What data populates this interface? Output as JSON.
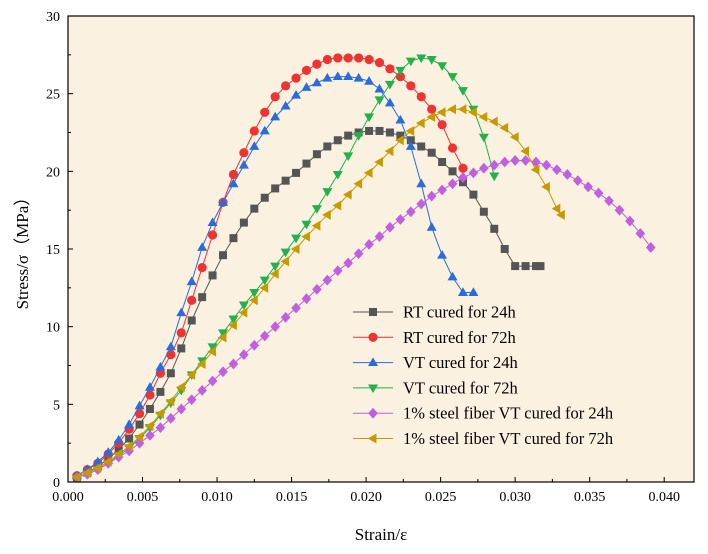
{
  "chart_data": {
    "type": "line",
    "title": "",
    "xlabel": "Strain/ε",
    "ylabel": "Stress/σ（MPa）",
    "xlim": [
      0,
      0.042
    ],
    "ylim": [
      0,
      30
    ],
    "xticks": [
      "0.000",
      "0.005",
      "0.010",
      "0.015",
      "0.020",
      "0.025",
      "0.030",
      "0.035",
      "0.040"
    ],
    "yticks": [
      "0",
      "5",
      "10",
      "15",
      "20",
      "25",
      "30"
    ],
    "grid": false,
    "legend_position": "bottom-right",
    "series": [
      {
        "name": "RT cured for 24h",
        "color": "#555555",
        "marker": "square",
        "x": [
          0.0006,
          0.0013,
          0.002,
          0.0027,
          0.0034,
          0.0041,
          0.0048,
          0.0055,
          0.0062,
          0.0069,
          0.0076,
          0.0083,
          0.009,
          0.0097,
          0.0104,
          0.0111,
          0.0118,
          0.0125,
          0.0132,
          0.0139,
          0.0146,
          0.0153,
          0.016,
          0.0167,
          0.0174,
          0.0181,
          0.0188,
          0.0195,
          0.0202,
          0.0209,
          0.0216,
          0.0223,
          0.023,
          0.0237,
          0.0244,
          0.0251,
          0.0258,
          0.0265,
          0.0272,
          0.0279,
          0.0286,
          0.0293,
          0.03,
          0.0307,
          0.0314,
          0.0317
        ],
        "y": [
          0.3,
          0.6,
          1.0,
          1.5,
          2.1,
          2.8,
          3.7,
          4.7,
          5.8,
          7.0,
          8.6,
          10.4,
          11.9,
          13.3,
          14.6,
          15.7,
          16.7,
          17.6,
          18.3,
          18.9,
          19.4,
          19.9,
          20.5,
          21.1,
          21.6,
          22.0,
          22.3,
          22.5,
          22.6,
          22.6,
          22.5,
          22.3,
          22.0,
          21.6,
          21.2,
          20.6,
          20.0,
          19.3,
          18.5,
          17.4,
          16.3,
          15.0,
          13.9,
          13.9,
          13.9,
          13.9
        ]
      },
      {
        "name": "RT cured for 72h",
        "color": "#ee3333",
        "marker": "circle",
        "x": [
          0.0006,
          0.0013,
          0.002,
          0.0027,
          0.0034,
          0.0041,
          0.0048,
          0.0055,
          0.0062,
          0.0069,
          0.0076,
          0.0083,
          0.009,
          0.0097,
          0.0104,
          0.0111,
          0.0118,
          0.0125,
          0.0132,
          0.0139,
          0.0146,
          0.0153,
          0.016,
          0.0167,
          0.0174,
          0.0181,
          0.0188,
          0.0195,
          0.0202,
          0.0209,
          0.0216,
          0.0223,
          0.023,
          0.0237,
          0.0244,
          0.0251,
          0.0258,
          0.0265
        ],
        "y": [
          0.4,
          0.8,
          1.2,
          1.8,
          2.5,
          3.4,
          4.4,
          5.6,
          7.0,
          8.2,
          9.6,
          11.7,
          13.8,
          15.9,
          18.0,
          19.8,
          21.2,
          22.6,
          23.8,
          24.8,
          25.5,
          26.0,
          26.5,
          26.9,
          27.2,
          27.3,
          27.3,
          27.3,
          27.2,
          27.0,
          26.6,
          26.1,
          25.5,
          24.8,
          24.0,
          23.0,
          21.5,
          20.2
        ]
      },
      {
        "name": "VT cured for 24h",
        "color": "#2a6cdc",
        "marker": "triangle-up",
        "x": [
          0.0006,
          0.0013,
          0.002,
          0.0027,
          0.0034,
          0.0041,
          0.0048,
          0.0055,
          0.0062,
          0.0069,
          0.0076,
          0.0083,
          0.009,
          0.0097,
          0.0104,
          0.0111,
          0.0118,
          0.0125,
          0.0132,
          0.0139,
          0.0146,
          0.0153,
          0.016,
          0.0167,
          0.0174,
          0.0181,
          0.0188,
          0.0195,
          0.0202,
          0.0209,
          0.0216,
          0.0223,
          0.023,
          0.0237,
          0.0244,
          0.0251,
          0.0258,
          0.0265,
          0.0272
        ],
        "y": [
          0.4,
          0.8,
          1.3,
          1.9,
          2.7,
          3.7,
          4.9,
          6.1,
          7.4,
          8.7,
          10.9,
          12.9,
          15.1,
          16.7,
          18.0,
          19.2,
          20.4,
          21.6,
          22.6,
          23.5,
          24.2,
          24.9,
          25.4,
          25.7,
          26.0,
          26.1,
          26.1,
          26.0,
          25.8,
          25.3,
          24.4,
          23.3,
          21.6,
          19.2,
          16.4,
          14.6,
          13.2,
          12.2,
          12.2
        ]
      },
      {
        "name": "VT cured for 72h",
        "color": "#22b14c",
        "marker": "triangle-down",
        "x": [
          0.0006,
          0.0013,
          0.002,
          0.0027,
          0.0034,
          0.0041,
          0.0048,
          0.0055,
          0.0062,
          0.0069,
          0.0076,
          0.0083,
          0.009,
          0.0097,
          0.0104,
          0.0111,
          0.0118,
          0.0125,
          0.0132,
          0.0139,
          0.0146,
          0.0153,
          0.016,
          0.0167,
          0.0174,
          0.0181,
          0.0188,
          0.0195,
          0.0202,
          0.0209,
          0.0216,
          0.0223,
          0.023,
          0.0237,
          0.0244,
          0.0251,
          0.0258,
          0.0265,
          0.0272,
          0.0279,
          0.0286
        ],
        "y": [
          0.3,
          0.5,
          0.8,
          1.2,
          1.7,
          2.2,
          2.8,
          3.5,
          4.3,
          5.1,
          5.9,
          6.9,
          7.8,
          8.7,
          9.6,
          10.5,
          11.4,
          12.2,
          13.0,
          13.9,
          14.8,
          15.7,
          16.6,
          17.6,
          18.7,
          19.8,
          21.0,
          22.3,
          23.5,
          24.6,
          25.6,
          26.5,
          27.1,
          27.3,
          27.2,
          26.8,
          26.1,
          25.2,
          24.0,
          22.2,
          19.7
        ]
      },
      {
        "name": "1% steel fiber VT cured for 24h",
        "color": "#c060e0",
        "marker": "diamond",
        "x": [
          0.0006,
          0.0013,
          0.002,
          0.0027,
          0.0034,
          0.0041,
          0.0048,
          0.0055,
          0.0062,
          0.0069,
          0.0076,
          0.0083,
          0.009,
          0.0097,
          0.0104,
          0.0111,
          0.0118,
          0.0125,
          0.0132,
          0.0139,
          0.0146,
          0.0153,
          0.016,
          0.0167,
          0.0174,
          0.0181,
          0.0188,
          0.0195,
          0.0202,
          0.0209,
          0.0216,
          0.0223,
          0.023,
          0.0237,
          0.0244,
          0.0251,
          0.0258,
          0.0265,
          0.0272,
          0.0279,
          0.0286,
          0.0293,
          0.03,
          0.0307,
          0.0314,
          0.0321,
          0.0328,
          0.0335,
          0.0342,
          0.0349,
          0.0356,
          0.0363,
          0.037,
          0.0377,
          0.0384,
          0.0391
        ],
        "y": [
          0.3,
          0.5,
          0.8,
          1.2,
          1.6,
          2.0,
          2.5,
          3.0,
          3.5,
          4.1,
          4.7,
          5.3,
          5.9,
          6.5,
          7.1,
          7.6,
          8.2,
          8.8,
          9.4,
          10.0,
          10.6,
          11.2,
          11.8,
          12.4,
          13.0,
          13.6,
          14.1,
          14.7,
          15.3,
          15.8,
          16.4,
          16.9,
          17.4,
          17.9,
          18.4,
          18.8,
          19.2,
          19.6,
          19.9,
          20.2,
          20.4,
          20.6,
          20.7,
          20.7,
          20.6,
          20.4,
          20.1,
          19.8,
          19.4,
          19.0,
          18.6,
          18.1,
          17.5,
          16.8,
          16.0,
          15.1
        ]
      },
      {
        "name": "1% steel fiber VT cured for 72h",
        "color": "#c79a00",
        "marker": "triangle-left",
        "x": [
          0.0006,
          0.0013,
          0.002,
          0.0027,
          0.0034,
          0.0041,
          0.0048,
          0.0055,
          0.0062,
          0.0069,
          0.0076,
          0.0083,
          0.009,
          0.0097,
          0.0104,
          0.0111,
          0.0118,
          0.0125,
          0.0132,
          0.0139,
          0.0146,
          0.0153,
          0.016,
          0.0167,
          0.0174,
          0.0181,
          0.0188,
          0.0195,
          0.0202,
          0.0209,
          0.0216,
          0.0223,
          0.023,
          0.0237,
          0.0244,
          0.0251,
          0.0258,
          0.0265,
          0.0272,
          0.0279,
          0.0286,
          0.0293,
          0.03,
          0.0307,
          0.0314,
          0.0321,
          0.0328,
          0.0331
        ],
        "y": [
          0.3,
          0.6,
          0.9,
          1.3,
          1.8,
          2.3,
          2.9,
          3.6,
          4.4,
          5.2,
          6.1,
          6.9,
          7.6,
          8.4,
          9.3,
          10.1,
          10.9,
          11.7,
          12.5,
          13.4,
          14.2,
          15.0,
          15.8,
          16.5,
          17.2,
          17.8,
          18.5,
          19.2,
          19.9,
          20.6,
          21.3,
          22.0,
          22.6,
          23.1,
          23.5,
          23.8,
          24.0,
          24.0,
          23.8,
          23.5,
          23.2,
          22.8,
          22.2,
          21.3,
          20.1,
          19.0,
          17.6,
          17.2
        ]
      }
    ]
  }
}
